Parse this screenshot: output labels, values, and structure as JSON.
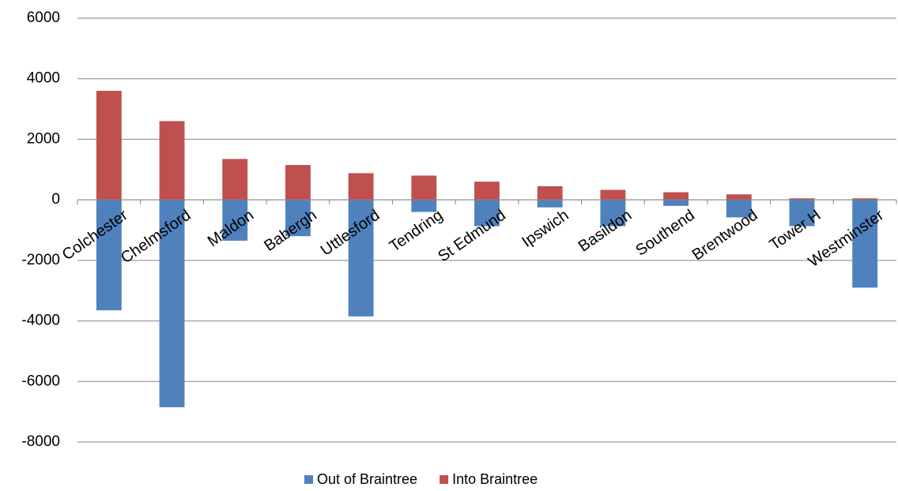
{
  "chart_data": {
    "type": "bar",
    "stacked": true,
    "categories": [
      "Colchester",
      "Chelmsford",
      "Maldon",
      "Babergh",
      "Uttlesford",
      "Tendring",
      "St Edmund",
      "Ipswich",
      "Basildon",
      "Southend",
      "Brentwood",
      "Tower H",
      "Westminster"
    ],
    "series": [
      {
        "name": "Out of Braintree",
        "color": "#4f81bd",
        "values": [
          -3650,
          -6850,
          -1350,
          -1200,
          -3850,
          -400,
          -870,
          -250,
          -870,
          -200,
          -580,
          -870,
          -2900
        ]
      },
      {
        "name": "Into Braintree",
        "color": "#c0504d",
        "values": [
          3600,
          2600,
          1350,
          1150,
          880,
          800,
          600,
          450,
          330,
          250,
          180,
          50,
          50
        ]
      }
    ],
    "ylim": [
      -8000,
      6000
    ],
    "yticks": [
      -8000,
      -6000,
      -4000,
      -2000,
      0,
      2000,
      4000,
      6000
    ],
    "grid": true,
    "legend": "bottom"
  }
}
